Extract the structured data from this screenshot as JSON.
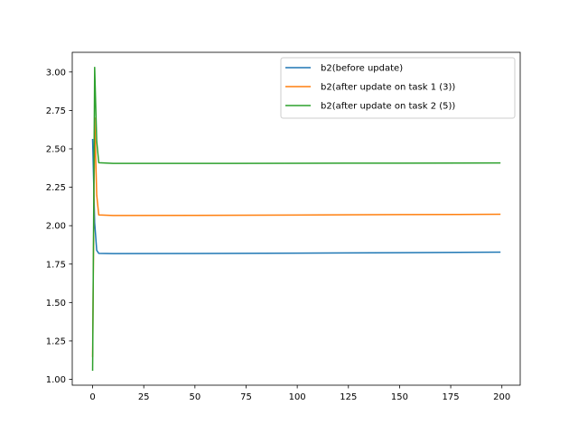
{
  "chart_data": {
    "type": "line",
    "title": "",
    "xlabel": "",
    "ylabel": "",
    "xlim": [
      -9.95,
      208.95
    ],
    "ylim": [
      0.962,
      3.128
    ],
    "xticks": [
      0,
      25,
      50,
      75,
      100,
      125,
      150,
      175,
      200
    ],
    "yticks": [
      1.0,
      1.25,
      1.5,
      1.75,
      2.0,
      2.25,
      2.5,
      2.75,
      3.0
    ],
    "ytick_labels": [
      "1.00",
      "1.25",
      "1.50",
      "1.75",
      "2.00",
      "2.25",
      "2.50",
      "2.75",
      "3.00"
    ],
    "legend_position": "top-right",
    "grid": false,
    "series": [
      {
        "name": "b2(before update)",
        "color": "#1f77b4",
        "points": [
          [
            0,
            2.56
          ],
          [
            1,
            2.02
          ],
          [
            2,
            1.84
          ],
          [
            3,
            1.82
          ],
          [
            10,
            1.818
          ],
          [
            50,
            1.819
          ],
          [
            100,
            1.821
          ],
          [
            150,
            1.824
          ],
          [
            199,
            1.828
          ]
        ]
      },
      {
        "name": "b2(after update on task 1 (3))",
        "color": "#ff7f0e",
        "points": [
          [
            0,
            1.15
          ],
          [
            1,
            2.7
          ],
          [
            2,
            2.2
          ],
          [
            3,
            2.07
          ],
          [
            10,
            2.066
          ],
          [
            50,
            2.067
          ],
          [
            100,
            2.069
          ],
          [
            150,
            2.072
          ],
          [
            199,
            2.074
          ]
        ]
      },
      {
        "name": "b2(after update on task 2 (5))",
        "color": "#2ca02c",
        "points": [
          [
            0,
            1.06
          ],
          [
            1,
            3.03
          ],
          [
            2,
            2.55
          ],
          [
            3,
            2.41
          ],
          [
            10,
            2.405
          ],
          [
            50,
            2.405
          ],
          [
            100,
            2.406
          ],
          [
            150,
            2.407
          ],
          [
            199,
            2.408
          ]
        ]
      }
    ]
  }
}
